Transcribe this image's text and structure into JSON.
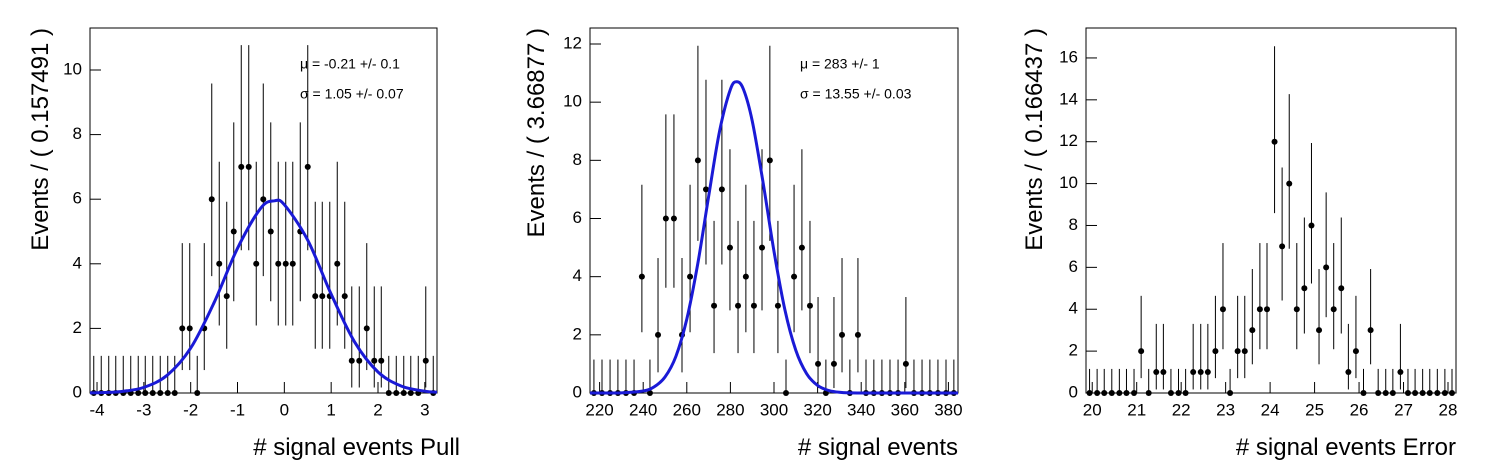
{
  "chart_data": [
    {
      "type": "errorbar",
      "x_label": "# signal events Pull",
      "y_label": "Events / ( 0.157491 )",
      "annotations": [
        "μ = -0.21 +/- 0.1",
        "σ =  1.05 +/- 0.07"
      ],
      "xlim": [
        -4.15,
        3.26
      ],
      "ylim": [
        0,
        11.3
      ],
      "xticks": [
        -4,
        -3,
        -2,
        -1,
        0,
        1,
        2,
        3
      ],
      "yticks": [
        0,
        2,
        4,
        6,
        8,
        10
      ],
      "color": "#000000",
      "x": [
        -4.07,
        -3.91,
        -3.75,
        -3.6,
        -3.44,
        -3.28,
        -3.12,
        -2.97,
        -2.81,
        -2.65,
        -2.49,
        -2.34,
        -2.18,
        -2.02,
        -1.86,
        -1.71,
        -1.55,
        -1.39,
        -1.23,
        -1.08,
        -0.92,
        -0.76,
        -0.6,
        -0.45,
        -0.29,
        -0.13,
        0.03,
        0.18,
        0.34,
        0.5,
        0.66,
        0.81,
        0.97,
        1.13,
        1.29,
        1.44,
        1.6,
        1.76,
        1.92,
        2.07,
        2.23,
        2.39,
        2.55,
        2.7,
        2.86,
        3.02,
        3.18
      ],
      "values": [
        0,
        0,
        0,
        0,
        0,
        0,
        0,
        0,
        0,
        0,
        0,
        0,
        2,
        2,
        0,
        2,
        6,
        4,
        3,
        5,
        7,
        7,
        4,
        6,
        5,
        4,
        4,
        4,
        5,
        7,
        3,
        3,
        3,
        4,
        3,
        1,
        1,
        2,
        1,
        1,
        0,
        0,
        0,
        0,
        0,
        1,
        0
      ],
      "errors_low": [
        0,
        0,
        0,
        0,
        0,
        0,
        0,
        0,
        0,
        0,
        0,
        0,
        1.29,
        1.29,
        0,
        1.29,
        2.38,
        1.91,
        1.63,
        2.16,
        2.58,
        2.58,
        1.91,
        2.38,
        2.16,
        1.91,
        1.91,
        1.91,
        2.16,
        2.58,
        1.63,
        1.63,
        1.63,
        1.91,
        1.63,
        0.83,
        0.83,
        1.29,
        0.83,
        0.83,
        0,
        0,
        0,
        0,
        0,
        0.83,
        0
      ],
      "errors_high": [
        1.15,
        1.15,
        1.15,
        1.15,
        1.15,
        1.15,
        1.15,
        1.15,
        1.15,
        1.15,
        1.15,
        1.15,
        2.64,
        2.64,
        1.15,
        2.64,
        3.58,
        3.16,
        2.92,
        3.38,
        3.77,
        3.77,
        3.16,
        3.58,
        3.38,
        3.16,
        3.16,
        3.16,
        3.38,
        3.77,
        2.92,
        2.92,
        2.92,
        3.16,
        2.92,
        2.3,
        2.3,
        2.64,
        2.3,
        2.3,
        1.15,
        1.15,
        1.15,
        1.15,
        1.15,
        2.3,
        1.15
      ],
      "fit": {
        "color": "#1a1ad6",
        "x": [
          -4.15,
          -4,
          -3.5,
          -3,
          -2.5,
          -2,
          -1.5,
          -1,
          -0.5,
          -0.21,
          0,
          0.5,
          1,
          1.5,
          2,
          2.5,
          3,
          3.26
        ],
        "values": [
          0.005,
          0.009,
          0.044,
          0.174,
          0.552,
          1.39,
          2.8,
          4.48,
          5.73,
          5.95,
          5.83,
          4.73,
          3.06,
          1.58,
          0.65,
          0.213,
          0.056,
          0.025
        ]
      }
    },
    {
      "type": "errorbar",
      "x_label": "# signal events",
      "y_label": "Events / ( 3.66877 )",
      "annotations": [
        "μ =  283 +/- 1",
        "σ =  13.55 +/- 0.03"
      ],
      "xlim": [
        215.6,
        384.4
      ],
      "ylim": [
        0,
        12.55
      ],
      "xticks": [
        220,
        240,
        260,
        280,
        300,
        320,
        340,
        360,
        380
      ],
      "yticks": [
        0,
        2,
        4,
        6,
        8,
        10,
        12
      ],
      "color": "#000000",
      "x": [
        217.4,
        221.1,
        224.8,
        228.4,
        232.1,
        235.8,
        239.4,
        243.1,
        246.8,
        250.4,
        254.1,
        257.8,
        261.5,
        265.1,
        268.8,
        272.5,
        276.1,
        279.8,
        283.5,
        287.1,
        290.8,
        294.5,
        298.1,
        301.8,
        305.5,
        309.2,
        312.8,
        316.5,
        320.2,
        323.8,
        327.5,
        331.2,
        334.8,
        338.5,
        342.2,
        345.8,
        349.5,
        353.2,
        356.9,
        360.5,
        364.2,
        367.9,
        371.5,
        375.2,
        378.9,
        382.5
      ],
      "values": [
        0,
        0,
        0,
        0,
        0,
        0,
        4,
        0,
        2,
        6,
        6,
        2,
        4,
        8,
        7,
        3,
        7,
        5,
        3,
        4,
        3,
        5,
        8,
        3,
        0,
        4,
        5,
        3,
        1,
        0,
        1,
        2,
        0,
        2,
        0,
        0,
        0,
        0,
        0,
        1,
        0,
        0,
        0,
        0,
        0,
        0
      ],
      "errors_low": [
        0,
        0,
        0,
        0,
        0,
        0,
        1.91,
        0,
        1.29,
        2.38,
        2.38,
        1.29,
        1.91,
        2.77,
        2.58,
        1.63,
        2.58,
        2.16,
        1.63,
        1.91,
        1.63,
        2.16,
        2.77,
        1.63,
        0,
        1.91,
        2.16,
        1.63,
        0.83,
        0,
        0.83,
        1.29,
        0,
        1.29,
        0,
        0,
        0,
        0,
        0,
        0.83,
        0,
        0,
        0,
        0,
        0,
        0
      ],
      "errors_high": [
        1.15,
        1.15,
        1.15,
        1.15,
        1.15,
        1.15,
        3.16,
        1.15,
        2.64,
        3.58,
        3.58,
        2.64,
        3.16,
        3.94,
        3.77,
        2.92,
        3.77,
        3.38,
        2.92,
        3.16,
        2.92,
        3.38,
        3.94,
        2.92,
        1.15,
        3.16,
        3.38,
        2.92,
        2.3,
        1.15,
        2.3,
        2.64,
        1.15,
        2.64,
        1.15,
        1.15,
        1.15,
        1.15,
        1.15,
        2.3,
        1.15,
        1.15,
        1.15,
        1.15,
        1.15,
        1.15
      ],
      "fit": {
        "color": "#1a1ad6",
        "x": [
          215.6,
          230,
          240,
          245,
          250,
          255,
          260,
          265,
          270,
          275,
          280,
          283,
          286,
          290,
          295,
          300,
          305,
          310,
          315,
          320,
          325,
          330,
          340,
          384.4
        ],
        "values": [
          0,
          0.005,
          0.07,
          0.21,
          0.55,
          1.26,
          2.54,
          4.43,
          6.75,
          8.99,
          10.44,
          10.7,
          10.44,
          9.36,
          7.23,
          4.87,
          2.86,
          1.47,
          0.66,
          0.26,
          0.088,
          0.026,
          0.001,
          0
        ]
      }
    },
    {
      "type": "errorbar",
      "x_label": "# signal events Error",
      "y_label": "Events / ( 0.166437 )",
      "xlim": [
        19.86,
        28.18
      ],
      "ylim": [
        0,
        17.43
      ],
      "xticks": [
        20,
        21,
        22,
        23,
        24,
        25,
        26,
        27,
        28
      ],
      "yticks": [
        0,
        2,
        4,
        6,
        8,
        10,
        12,
        14,
        16
      ],
      "color": "#000000",
      "x": [
        19.94,
        20.11,
        20.27,
        20.44,
        20.61,
        20.77,
        20.94,
        21.1,
        21.27,
        21.44,
        21.6,
        21.77,
        21.94,
        22.1,
        22.27,
        22.44,
        22.6,
        22.77,
        22.94,
        23.1,
        23.27,
        23.43,
        23.6,
        23.77,
        23.93,
        24.1,
        24.27,
        24.43,
        24.6,
        24.77,
        24.93,
        25.1,
        25.26,
        25.43,
        25.6,
        25.76,
        25.93,
        26.1,
        26.26,
        26.43,
        26.6,
        26.76,
        26.93,
        27.1,
        27.26,
        27.43,
        27.59,
        27.76,
        27.93,
        28.09
      ],
      "values": [
        0,
        0,
        0,
        0,
        0,
        0,
        0,
        2,
        0,
        1,
        1,
        0,
        0,
        0,
        1,
        1,
        1,
        2,
        4,
        0,
        2,
        2,
        3,
        4,
        4,
        12,
        7,
        10,
        4,
        5,
        8,
        3,
        6,
        4,
        5,
        1,
        2,
        0,
        3,
        0,
        0,
        0,
        1,
        0,
        0,
        0,
        0,
        0,
        0,
        0
      ],
      "errors_low": [
        0,
        0,
        0,
        0,
        0,
        0,
        0,
        1.29,
        0,
        0.83,
        0.83,
        0,
        0,
        0,
        0.83,
        0.83,
        0.83,
        1.29,
        1.91,
        0,
        1.29,
        1.29,
        1.63,
        1.91,
        1.91,
        3.41,
        2.58,
        3.11,
        1.91,
        2.16,
        2.77,
        1.63,
        2.38,
        1.91,
        2.16,
        0.83,
        1.29,
        0,
        1.63,
        0,
        0,
        0,
        0.83,
        0,
        0,
        0,
        0,
        0,
        0,
        0
      ],
      "errors_high": [
        1.15,
        1.15,
        1.15,
        1.15,
        1.15,
        1.15,
        1.15,
        2.64,
        1.15,
        2.3,
        2.3,
        1.15,
        1.15,
        1.15,
        2.3,
        2.3,
        2.3,
        2.64,
        3.16,
        1.15,
        2.64,
        2.64,
        2.92,
        3.16,
        3.16,
        4.56,
        3.77,
        4.27,
        3.16,
        3.38,
        3.94,
        2.92,
        3.58,
        3.16,
        3.38,
        2.3,
        2.64,
        1.15,
        2.92,
        1.15,
        1.15,
        1.15,
        2.3,
        1.15,
        1.15,
        1.15,
        1.15,
        1.15,
        1.15,
        1.15
      ]
    }
  ]
}
